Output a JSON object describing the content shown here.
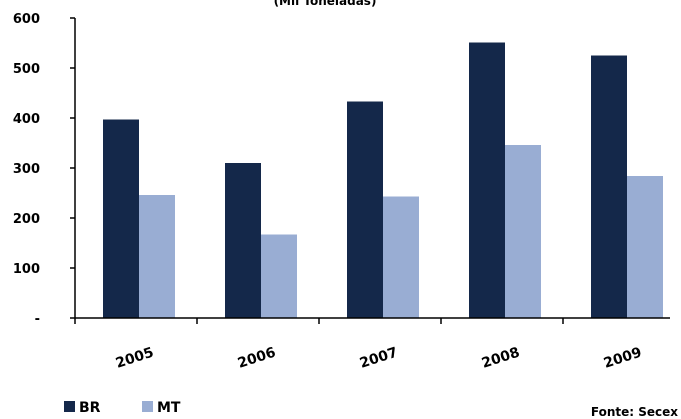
{
  "chart_data": {
    "type": "bar",
    "subtitle": "(Mil Toneladas)",
    "categories": [
      "2005",
      "2006",
      "2007",
      "2008",
      "2009"
    ],
    "series": [
      {
        "name": "BR",
        "color": "#14284a",
        "values": [
          397,
          310,
          433,
          551,
          525
        ]
      },
      {
        "name": "MT",
        "color": "#99add3",
        "values": [
          246,
          167,
          243,
          346,
          284
        ]
      }
    ],
    "ylim": [
      0,
      600
    ],
    "yticks": [
      0,
      100,
      200,
      300,
      400,
      500,
      600
    ],
    "ytick_labels": [
      "-",
      "100",
      "200",
      "300",
      "400",
      "500",
      "600"
    ],
    "grid": false,
    "legend": "bottom-left",
    "source": "Fonte: Secex"
  }
}
